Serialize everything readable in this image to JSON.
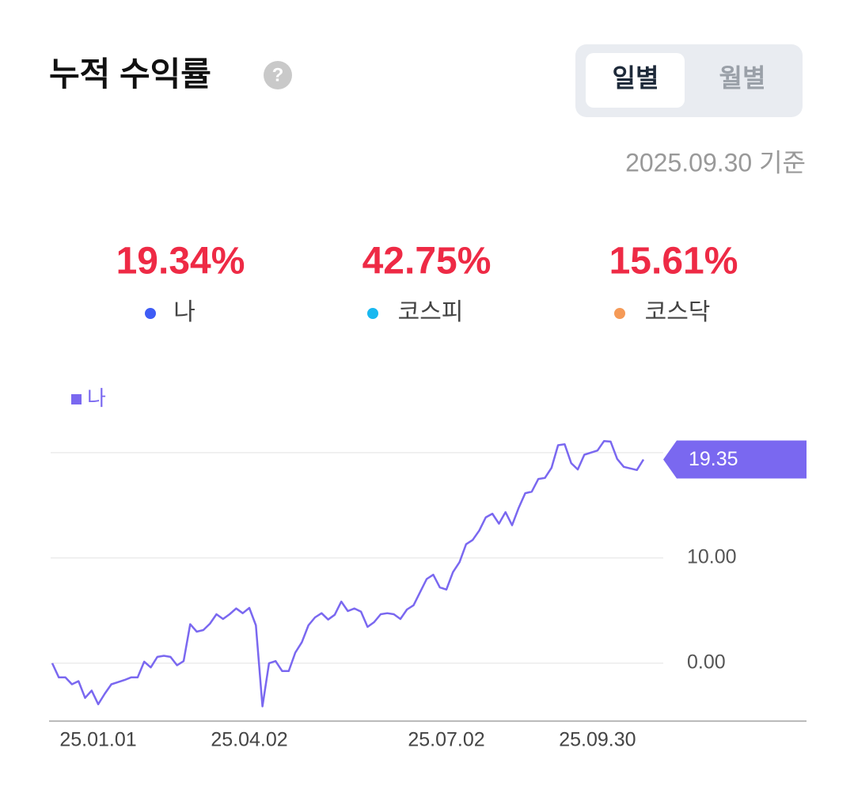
{
  "header": {
    "title": "누적 수익률",
    "help": "?"
  },
  "tabs": [
    {
      "label": "일별",
      "active": true
    },
    {
      "label": "월별",
      "active": false
    }
  ],
  "as_of": "2025.09.30 기준",
  "stats": [
    {
      "value": "19.34%",
      "label": "나",
      "color": "#3e5cf5"
    },
    {
      "value": "42.75%",
      "label": "코스피",
      "color": "#19b8f0"
    },
    {
      "value": "15.61%",
      "label": "코스닥",
      "color": "#f59a57"
    }
  ],
  "chart_data": {
    "type": "line",
    "categories": [
      "25.01.01",
      null,
      null,
      null,
      null,
      null,
      null,
      null,
      null,
      null,
      null,
      null,
      null,
      null,
      null,
      null,
      null,
      null,
      null,
      null,
      null,
      null,
      null,
      null,
      null,
      null,
      null,
      null,
      null,
      null,
      "25.04.02",
      null,
      null,
      null,
      null,
      null,
      null,
      null,
      null,
      null,
      null,
      null,
      null,
      null,
      null,
      null,
      null,
      null,
      null,
      null,
      null,
      null,
      null,
      null,
      null,
      null,
      null,
      null,
      null,
      null,
      "25.07.02",
      null,
      null,
      null,
      null,
      null,
      null,
      null,
      null,
      null,
      null,
      null,
      null,
      null,
      null,
      null,
      null,
      null,
      null,
      null,
      null,
      null,
      null,
      "25.09.30",
      null,
      null,
      null,
      null,
      null,
      null,
      null
    ],
    "series": [
      {
        "name": "나",
        "color": "#7a68f0",
        "values": [
          0,
          -1.35,
          -1.35,
          -2.0,
          -1.7,
          -3.3,
          -2.6,
          -3.9,
          -2.9,
          -2.0,
          -1.8,
          -1.6,
          -1.35,
          -1.35,
          0.15,
          -0.4,
          0.6,
          0.7,
          0.6,
          -0.2,
          0.2,
          3.7,
          3.0,
          3.15,
          3.75,
          4.65,
          4.2,
          4.65,
          5.2,
          4.75,
          5.25,
          3.6,
          -4.1,
          0,
          0.2,
          -0.75,
          -0.75,
          1.0,
          2.0,
          3.6,
          4.35,
          4.75,
          4.15,
          4.6,
          5.85,
          4.95,
          5.2,
          4.9,
          3.45,
          3.9,
          4.65,
          4.75,
          4.65,
          4.2,
          5.1,
          5.5,
          6.75,
          8.0,
          8.4,
          7.2,
          7.0,
          8.65,
          9.6,
          11.3,
          11.7,
          12.6,
          13.85,
          14.2,
          13.25,
          14.35,
          13.1,
          14.75,
          16.15,
          16.3,
          17.5,
          17.6,
          18.55,
          20.7,
          20.8,
          19.0,
          18.4,
          19.8,
          20.0,
          20.2,
          21.1,
          21.05,
          19.4,
          18.65,
          18.5,
          18.35,
          19.35
        ]
      }
    ],
    "ylim": [
      -5.5,
      23.5
    ],
    "yticks": [
      {
        "value": 0,
        "label": "0.00"
      },
      {
        "value": 10,
        "label": "10.00"
      },
      {
        "value": 20,
        "label": null
      }
    ],
    "grid": true
  }
}
